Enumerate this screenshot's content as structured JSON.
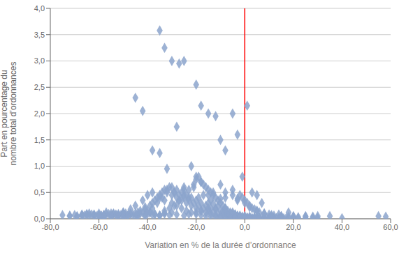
{
  "chart_data": {
    "type": "scatter",
    "xlabel": "Variation en % de la durée d’ordonnance",
    "ylabel": "Part en pourcentage du\nnombre total d’ordonnances",
    "xlim": [
      -80,
      60
    ],
    "ylim": [
      0,
      4.0
    ],
    "xticks": [
      {
        "value": -80,
        "label": "-80,0"
      },
      {
        "value": -60,
        "label": "-60,0"
      },
      {
        "value": -40,
        "label": "-40,0"
      },
      {
        "value": -20,
        "label": "-20,0"
      },
      {
        "value": 0,
        "label": "0,0"
      },
      {
        "value": 20,
        "label": "20,0"
      },
      {
        "value": 40,
        "label": "40,0"
      },
      {
        "value": 60,
        "label": "60,0"
      }
    ],
    "yticks": [
      {
        "value": 0,
        "label": "0,0"
      },
      {
        "value": 0.5,
        "label": "0,5"
      },
      {
        "value": 1.0,
        "label": "1,0"
      },
      {
        "value": 1.5,
        "label": "1,5"
      },
      {
        "value": 2.0,
        "label": "2,0"
      },
      {
        "value": 2.5,
        "label": "2,5"
      },
      {
        "value": 3.0,
        "label": "3,0"
      },
      {
        "value": 3.5,
        "label": "3,5"
      },
      {
        "value": 4.0,
        "label": "4,0"
      }
    ],
    "grid": "y",
    "color": "#8ca4cc",
    "marker": "diamond",
    "vlines": [
      {
        "x": 0,
        "color": "#ff0000"
      }
    ],
    "x": [
      -35,
      -33,
      -30,
      -27,
      -25,
      -45,
      -42,
      -20,
      -18,
      -15,
      -12,
      -10,
      -8,
      -5,
      -3,
      -38,
      -35,
      -32,
      -28,
      -25,
      -22,
      -20,
      -18,
      -15,
      -13,
      -10,
      -8,
      -5,
      -3,
      -1,
      1,
      3,
      5,
      7,
      10,
      15,
      20,
      25,
      30,
      40,
      55,
      58,
      -60,
      -58,
      -55,
      -52,
      -50,
      -47,
      -44,
      -41,
      -39,
      -37,
      -35,
      -33,
      -31,
      -29,
      -27,
      -25,
      -23,
      -21,
      -19,
      -17,
      -15,
      -14,
      -12,
      -11,
      -9,
      -8,
      -7,
      -5,
      -4,
      -3,
      -2,
      -1,
      0,
      1,
      2,
      3,
      4,
      5,
      6,
      8,
      10,
      12,
      15,
      18,
      22,
      28,
      35,
      -65,
      -62,
      -60,
      -58,
      -55,
      -53,
      -50,
      -48,
      -45,
      -43,
      -41,
      -39,
      -37,
      -35,
      -33,
      -31,
      -29,
      -27,
      -25,
      -23,
      -21,
      -20,
      -19,
      -18,
      -17,
      -16,
      -15,
      -14,
      -13,
      -12,
      -11,
      -10,
      -9,
      -8,
      -7,
      -6,
      -5,
      -4,
      -3,
      -2,
      -1,
      0,
      1,
      2,
      3,
      4,
      5,
      6,
      7,
      8,
      10,
      12,
      14,
      17,
      20,
      25,
      -67,
      -64,
      -62,
      -59,
      -57,
      -54,
      -52,
      -49,
      -47,
      -44,
      -42,
      -40,
      -38,
      -36,
      -34,
      -32,
      -30,
      -28,
      -26,
      -24,
      -22,
      -20,
      -18,
      -16,
      -14,
      -12,
      -10,
      -8,
      -6,
      -4,
      -2,
      0,
      2,
      4,
      6,
      8,
      10,
      13,
      16,
      20,
      25,
      30,
      -70,
      -67,
      -65,
      -62,
      -59,
      -57,
      -54,
      -51,
      -49,
      -46,
      -44,
      -41,
      -39,
      -37,
      -35,
      -33,
      -31,
      -29,
      -27,
      -25,
      -23,
      -21,
      -19,
      -17,
      -15,
      -13,
      -11,
      -9,
      -7,
      -5,
      -3,
      -1,
      1,
      3,
      5,
      8,
      11,
      14,
      18,
      22,
      28,
      -72,
      -69,
      -67,
      -64,
      -61,
      -58,
      -56,
      -53,
      -50,
      -48,
      -45,
      -43,
      -41,
      -38,
      -36,
      -34,
      -32,
      -30,
      -28,
      -26,
      -24,
      -22,
      -20,
      -18,
      -16,
      -14,
      -12,
      -10,
      -8,
      -6,
      -4,
      -2,
      0,
      2,
      4,
      6,
      9,
      12,
      15,
      20,
      25,
      -75,
      -72,
      -69,
      -66,
      -63,
      -60,
      -58,
      -55,
      -52,
      -50,
      -47,
      -45,
      -42,
      -40,
      -38,
      -35,
      -33,
      -30,
      -28,
      -26,
      -24,
      -22,
      -20,
      -18,
      -16,
      -14,
      -12,
      -10,
      -8,
      -6,
      -4,
      -2,
      0,
      2,
      4,
      6,
      8,
      11,
      14,
      18,
      -40,
      -38,
      -35,
      -33,
      -30,
      -28,
      -25,
      -23,
      -20,
      -18,
      -15,
      -13,
      -10,
      -8,
      -5,
      -3,
      0,
      2,
      5,
      8,
      11,
      15,
      20
    ],
    "values": [
      3.58,
      3.25,
      3.0,
      2.95,
      3.0,
      2.3,
      2.05,
      2.55,
      2.15,
      2.0,
      1.95,
      1.5,
      1.3,
      2.0,
      1.6,
      1.3,
      1.25,
      0.95,
      1.75,
      0.6,
      1.0,
      0.8,
      0.7,
      0.45,
      0.5,
      0.65,
      0.4,
      0.55,
      0.35,
      0.8,
      2.15,
      0.5,
      0.45,
      0.3,
      0.02,
      0.02,
      0.02,
      0.01,
      0.01,
      0.01,
      0.05,
      0.04,
      0.07,
      0.05,
      0.1,
      0.06,
      0.08,
      0.1,
      0.07,
      0.05,
      0.12,
      0.08,
      0.06,
      0.1,
      0.07,
      0.5,
      0.35,
      0.55,
      0.4,
      0.6,
      0.4,
      0.45,
      0.3,
      0.35,
      0.2,
      0.25,
      0.15,
      0.2,
      0.1,
      0.12,
      0.08,
      0.05,
      0.45,
      0.4,
      0.35,
      0.3,
      0.25,
      0.2,
      0.18,
      0.15,
      0.12,
      0.1,
      0.08,
      0.06,
      0.05,
      0.04,
      0.03,
      0.02,
      0.05,
      0.08,
      0.06,
      0.1,
      0.07,
      0.05,
      0.08,
      0.12,
      0.07,
      0.05,
      0.1,
      0.08,
      0.12,
      0.09,
      0.06,
      0.15,
      0.2,
      0.25,
      0.35,
      0.45,
      0.55,
      0.65,
      0.75,
      0.8,
      0.7,
      0.65,
      0.6,
      0.55,
      0.5,
      0.45,
      0.4,
      0.35,
      0.3,
      0.25,
      0.2,
      0.15,
      0.12,
      0.1,
      0.08,
      0.06,
      0.05,
      0.04,
      0.03,
      0.02,
      0.02,
      0.01,
      0.01,
      0.01,
      0.01,
      0.01,
      0.01,
      0.01,
      0.01,
      0.01,
      0.01,
      0.01,
      0.05,
      0.07,
      0.1,
      0.08,
      0.06,
      0.12,
      0.09,
      0.07,
      0.1,
      0.08,
      0.05,
      0.12,
      0.15,
      0.2,
      0.3,
      0.4,
      0.5,
      0.6,
      0.55,
      0.5,
      0.45,
      0.4,
      0.35,
      0.3,
      0.25,
      0.2,
      0.18,
      0.15,
      0.12,
      0.1,
      0.08,
      0.06,
      0.05,
      0.04,
      0.03,
      0.02,
      0.02,
      0.01,
      0.01,
      0.01,
      0.01,
      0.01,
      0.05,
      0.07,
      0.06,
      0.09,
      0.07,
      0.05,
      0.08,
      0.1,
      0.07,
      0.06,
      0.08,
      0.12,
      0.18,
      0.25,
      0.35,
      0.45,
      0.55,
      0.6,
      0.5,
      0.45,
      0.4,
      0.35,
      0.3,
      0.25,
      0.2,
      0.15,
      0.12,
      0.1,
      0.08,
      0.06,
      0.04,
      0.03,
      0.02,
      0.02,
      0.01,
      0.01,
      0.01,
      0.01,
      0.01,
      0.01,
      0.01,
      0.04,
      0.06,
      0.05,
      0.08,
      0.06,
      0.05,
      0.07,
      0.09,
      0.07,
      0.05,
      0.07,
      0.1,
      0.15,
      0.22,
      0.3,
      0.4,
      0.5,
      0.55,
      0.45,
      0.4,
      0.35,
      0.3,
      0.25,
      0.2,
      0.15,
      0.12,
      0.1,
      0.07,
      0.06,
      0.04,
      0.03,
      0.02,
      0.02,
      0.01,
      0.01,
      0.01,
      0.01,
      0.01,
      0.01,
      0.03,
      0.05,
      0.04,
      0.07,
      0.05,
      0.04,
      0.06,
      0.08,
      0.06,
      0.04,
      0.06,
      0.09,
      0.12,
      0.18,
      0.25,
      0.35,
      0.45,
      0.5,
      0.4,
      0.35,
      0.3,
      0.25,
      0.2,
      0.15,
      0.12,
      0.09,
      0.07,
      0.05,
      0.04,
      0.03,
      0.02,
      0.01,
      0.01,
      0.01,
      0.01,
      0.01,
      0.01,
      0.01,
      0.01,
      0.01,
      0.05,
      0.08,
      0.12,
      0.1,
      0.08,
      0.06,
      0.1,
      0.12,
      0.08,
      0.06,
      0.09,
      0.12,
      0.15,
      0.2,
      0.28,
      0.38,
      0.5,
      0.45,
      0.38,
      0.3,
      0.22,
      0.15,
      0.1,
      0.07,
      0.05,
      0.04
    ]
  }
}
